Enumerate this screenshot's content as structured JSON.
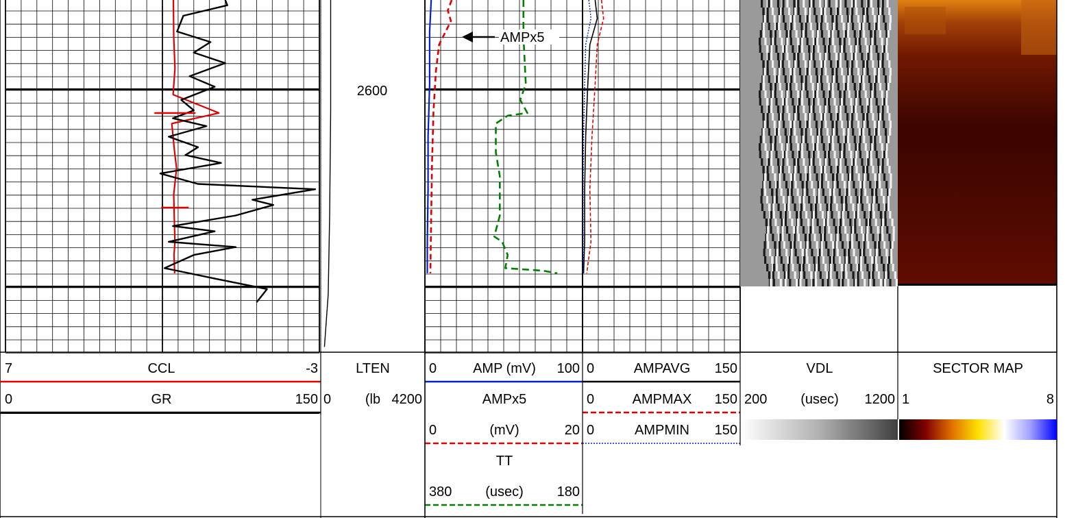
{
  "depth_track": {
    "depth_label": "2600"
  },
  "annotation": {
    "text": "AMPx5"
  },
  "colors": {
    "ccl": "#e00000",
    "gr": "#000000",
    "amp": "#0020d0",
    "ampx5": "#e00000",
    "tt": "#008000",
    "ampavg": "#000000",
    "ampmax": "#e00000",
    "ampmin": "#0020d0"
  },
  "header": {
    "track1": {
      "rows": [
        {
          "name": "CCL",
          "left": "7",
          "right": "-3",
          "color": "#e00000",
          "style": "solid"
        },
        {
          "name": "GR",
          "left": "0",
          "right": "150",
          "color": "#000000",
          "style": "solid"
        }
      ]
    },
    "track2": {
      "rows": [
        {
          "name": "LTEN",
          "left": "",
          "right": "",
          "color": "",
          "style": "none"
        },
        {
          "name": "(lb",
          "left": "0",
          "right": "4200",
          "color": "",
          "style": "none"
        }
      ]
    },
    "track3": {
      "rows": [
        {
          "name": "AMP (mV)",
          "left": "0",
          "right": "100",
          "color": "#0020d0",
          "style": "solid"
        },
        {
          "name": "AMPx5",
          "left": "",
          "right": "",
          "color": "",
          "style": "none"
        },
        {
          "name": "(mV)",
          "left": "0",
          "right": "20",
          "color": "#e00000",
          "style": "dashed"
        },
        {
          "name": "TT",
          "left": "",
          "right": "",
          "color": "",
          "style": "none"
        },
        {
          "name": "(usec)",
          "left": "380",
          "right": "180",
          "color": "#008000",
          "style": "dashed"
        }
      ]
    },
    "track4": {
      "rows": [
        {
          "name": "AMPAVG",
          "left": "0",
          "right": "150",
          "color": "#000000",
          "style": "solid"
        },
        {
          "name": "AMPMAX",
          "left": "0",
          "right": "150",
          "color": "#e00000",
          "style": "dashed"
        },
        {
          "name": "AMPMIN",
          "left": "0",
          "right": "150",
          "color": "#0020d0",
          "style": "dotted"
        }
      ]
    },
    "track5": {
      "rows": [
        {
          "name": "VDL",
          "left": "",
          "right": "",
          "color": "",
          "style": "none"
        },
        {
          "name": "(usec)",
          "left": "200",
          "right": "1200",
          "color": "",
          "style": "none"
        }
      ],
      "colorbar": [
        "#ffffff",
        "#b0b0b0",
        "#404040"
      ]
    },
    "track6": {
      "rows": [
        {
          "name": "SECTOR MAP",
          "left": "",
          "right": "",
          "color": "",
          "style": "none"
        },
        {
          "name": "",
          "left": "1",
          "right": "8",
          "color": "",
          "style": "none"
        }
      ],
      "colorbar": [
        "#000000",
        "#800000",
        "#e07000",
        "#ffe000",
        "#ffffff",
        "#a0a0ff",
        "#0000ff"
      ]
    }
  },
  "chart_data": {
    "type": "line",
    "depth_label": "2600",
    "series": [
      {
        "name": "CCL",
        "track": "track1",
        "xrange": [
          7,
          -3
        ],
        "points": [
          [
            1.65,
            2558
          ],
          [
            1.64,
            2572
          ],
          [
            1.6,
            2584
          ],
          [
            1.66,
            2594
          ],
          [
            0.2,
            2601
          ],
          [
            1.7,
            2605
          ],
          [
            1.62,
            2615
          ],
          [
            1.55,
            2622
          ],
          [
            1.64,
            2632
          ],
          [
            1.62,
            2642
          ],
          [
            1.6,
            2650
          ],
          [
            1.63,
            2655
          ],
          [
            1.61,
            2662
          ]
        ]
      },
      {
        "name": "GR",
        "track": "track1",
        "xrange": [
          0,
          150
        ],
        "points": [
          [
            105,
            2558
          ],
          [
            106,
            2560
          ],
          [
            85,
            2564
          ],
          [
            82,
            2570
          ],
          [
            98,
            2574
          ],
          [
            90,
            2578
          ],
          [
            105,
            2582
          ],
          [
            88,
            2587
          ],
          [
            100,
            2591
          ],
          [
            84,
            2596
          ],
          [
            90,
            2600
          ],
          [
            80,
            2603
          ],
          [
            96,
            2606
          ],
          [
            78,
            2610
          ],
          [
            92,
            2614
          ],
          [
            86,
            2617
          ],
          [
            103,
            2620
          ],
          [
            74,
            2624
          ],
          [
            92,
            2628
          ],
          [
            148,
            2630
          ],
          [
            118,
            2634
          ],
          [
            128,
            2636
          ],
          [
            110,
            2640
          ],
          [
            80,
            2644
          ],
          [
            100,
            2646
          ],
          [
            78,
            2650
          ],
          [
            110,
            2652
          ],
          [
            90,
            2655
          ],
          [
            76,
            2660
          ],
          [
            100,
            2664
          ],
          [
            125,
            2668
          ],
          [
            120,
            2673
          ]
        ]
      },
      {
        "name": "AMP",
        "track": "track3",
        "xrange": [
          0,
          100
        ],
        "points": [
          [
            4,
            2558
          ],
          [
            3,
            2570
          ],
          [
            3,
            2590
          ],
          [
            2,
            2610
          ],
          [
            2,
            2630
          ],
          [
            1.5,
            2650
          ],
          [
            1.5,
            2662
          ]
        ]
      },
      {
        "name": "AMPx5",
        "track": "track3",
        "xrange": [
          0,
          20
        ],
        "points": [
          [
            3.4,
            2558
          ],
          [
            2.9,
            2562
          ],
          [
            3.3,
            2566
          ],
          [
            1.8,
            2575
          ],
          [
            1.4,
            2585
          ],
          [
            1.1,
            2600
          ],
          [
            0.9,
            2620
          ],
          [
            0.8,
            2640
          ],
          [
            0.7,
            2662
          ]
        ]
      },
      {
        "name": "TT",
        "track": "track3",
        "xrange": [
          380,
          180
        ],
        "points": [
          [
            255,
            2558
          ],
          [
            255,
            2572
          ],
          [
            252,
            2590
          ],
          [
            259,
            2596
          ],
          [
            250,
            2601
          ],
          [
            275,
            2602
          ],
          [
            290,
            2605
          ],
          [
            290,
            2616
          ],
          [
            285,
            2625
          ],
          [
            285,
            2640
          ],
          [
            292,
            2648
          ],
          [
            282,
            2650
          ],
          [
            275,
            2655
          ],
          [
            278,
            2660
          ],
          [
            230,
            2661
          ],
          [
            212,
            2662
          ]
        ]
      },
      {
        "name": "AMPAVG",
        "track": "track4",
        "xrange": [
          0,
          150
        ],
        "points": [
          [
            12,
            2558
          ],
          [
            14,
            2565
          ],
          [
            7,
            2575
          ],
          [
            5,
            2590
          ],
          [
            3,
            2610
          ],
          [
            2,
            2630
          ],
          [
            2,
            2650
          ],
          [
            1,
            2662
          ]
        ]
      },
      {
        "name": "AMPMAX",
        "track": "track4",
        "xrange": [
          0,
          150
        ],
        "points": [
          [
            18,
            2558
          ],
          [
            20,
            2565
          ],
          [
            14,
            2575
          ],
          [
            12,
            2590
          ],
          [
            9,
            2610
          ],
          [
            7,
            2630
          ],
          [
            8,
            2650
          ],
          [
            4,
            2662
          ]
        ]
      },
      {
        "name": "AMPMIN",
        "track": "track4",
        "xrange": [
          0,
          150
        ],
        "points": [
          [
            6,
            2558
          ],
          [
            8,
            2565
          ],
          [
            3,
            2575
          ],
          [
            2,
            2590
          ],
          [
            1,
            2610
          ],
          [
            0.5,
            2630
          ],
          [
            0.5,
            2650
          ],
          [
            0.5,
            2662
          ]
        ]
      },
      {
        "name": "LTEN",
        "track": "track2",
        "xrange": [
          0,
          4200
        ],
        "points": [
          [
            400,
            2558
          ],
          [
            400,
            2600
          ],
          [
            360,
            2640
          ],
          [
            300,
            2670
          ],
          [
            150,
            2690
          ]
        ]
      }
    ],
    "ylim": [
      2558,
      2692
    ],
    "grid": true
  }
}
